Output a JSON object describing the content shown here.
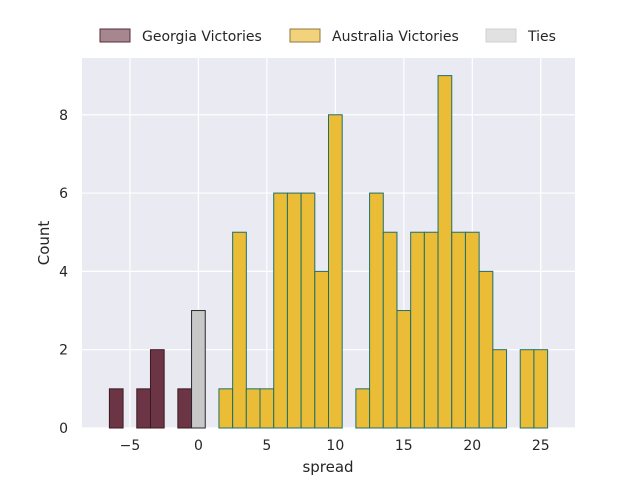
{
  "chart_data": {
    "type": "bar",
    "xlabel": "spread",
    "ylabel": "Count",
    "xlim": [
      -8.5,
      27.5
    ],
    "ylim": [
      0,
      9.45
    ],
    "x_ticks": [
      -5,
      0,
      5,
      10,
      15,
      20,
      25
    ],
    "x_tick_labels": [
      "−5",
      "0",
      "5",
      "10",
      "15",
      "20",
      "25"
    ],
    "y_ticks": [
      0,
      2,
      4,
      6,
      8
    ],
    "y_tick_labels": [
      "0",
      "2",
      "4",
      "6",
      "8"
    ],
    "grid": true,
    "legend_position": "top",
    "bin_width": 1,
    "series": [
      {
        "name": "Georgia Victories",
        "color": "#6b3545",
        "edge": "#3a1a22",
        "x": [
          -6,
          -4,
          -3,
          -1
        ],
        "values": [
          1,
          1,
          2,
          1
        ]
      },
      {
        "name": "Australia Victories",
        "color": "#ebbc35",
        "edge": "#1f6f6a",
        "x": [
          2,
          3,
          4,
          5,
          6,
          7,
          8,
          9,
          10,
          12,
          13,
          14,
          15,
          16,
          17,
          18,
          19,
          20,
          21,
          22,
          24,
          25
        ],
        "values": [
          1,
          5,
          1,
          1,
          6,
          6,
          6,
          4,
          8,
          1,
          6,
          5,
          3,
          5,
          5,
          9,
          5,
          5,
          4,
          2,
          2,
          2
        ]
      },
      {
        "name": "Ties",
        "color": "#c8c8c8",
        "edge": "#2a2a2a",
        "x": [
          0
        ],
        "values": [
          3
        ]
      }
    ]
  }
}
